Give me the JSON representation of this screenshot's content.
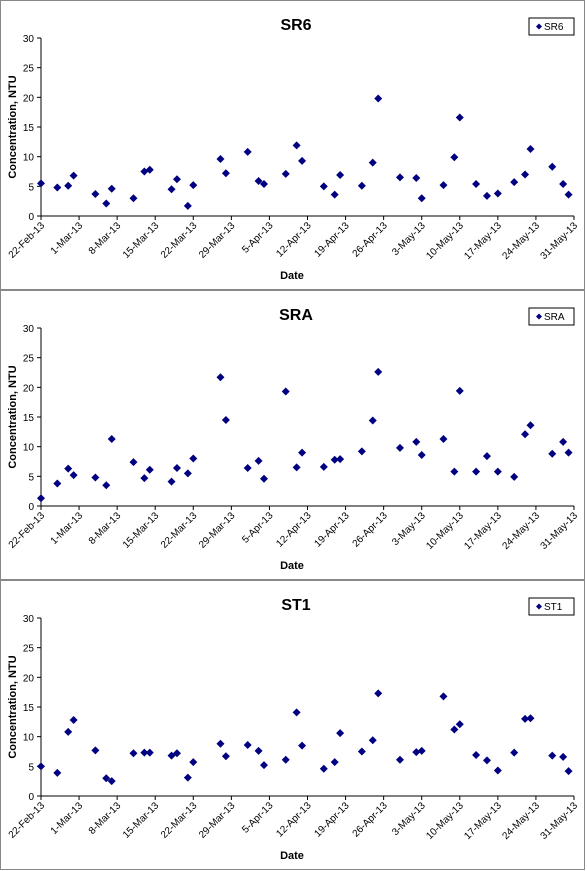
{
  "chart_data": [
    {
      "type": "scatter",
      "title": "SR6",
      "xlabel": "Date",
      "ylabel": "Concentration, NTU",
      "ylim": [
        0,
        30
      ],
      "yticks": [
        0,
        5,
        10,
        15,
        20,
        25,
        30
      ],
      "xlim": [
        "2013-02-22",
        "2013-05-31"
      ],
      "xtick_labels": [
        "22-Feb-13",
        "1-Mar-13",
        "8-Mar-13",
        "15-Mar-13",
        "22-Mar-13",
        "29-Mar-13",
        "5-Apr-13",
        "12-Apr-13",
        "19-Apr-13",
        "26-Apr-13",
        "3-May-13",
        "10-May-13",
        "17-May-13",
        "24-May-13",
        "31-May-13"
      ],
      "grid": false,
      "legend": "top-right",
      "marker_color": "#000080",
      "series": [
        {
          "name": "SR6",
          "x": [
            "2013-02-22",
            "2013-02-25",
            "2013-02-27",
            "2013-02-28",
            "2013-03-04",
            "2013-03-06",
            "2013-03-07",
            "2013-03-11",
            "2013-03-13",
            "2013-03-14",
            "2013-03-18",
            "2013-03-19",
            "2013-03-21",
            "2013-03-22",
            "2013-03-27",
            "2013-03-28",
            "2013-04-01",
            "2013-04-03",
            "2013-04-04",
            "2013-04-08",
            "2013-04-10",
            "2013-04-11",
            "2013-04-15",
            "2013-04-17",
            "2013-04-18",
            "2013-04-22",
            "2013-04-24",
            "2013-04-25",
            "2013-04-29",
            "2013-05-02",
            "2013-05-03",
            "2013-05-07",
            "2013-05-09",
            "2013-05-10",
            "2013-05-13",
            "2013-05-15",
            "2013-05-17",
            "2013-05-20",
            "2013-05-22",
            "2013-05-23",
            "2013-05-27",
            "2013-05-29",
            "2013-05-30"
          ],
          "y": [
            5.5,
            4.8,
            5.1,
            6.8,
            3.7,
            2.1,
            4.6,
            3.0,
            7.5,
            7.8,
            4.5,
            6.2,
            1.7,
            5.2,
            9.6,
            7.2,
            10.8,
            5.9,
            5.4,
            7.1,
            11.9,
            9.3,
            5.0,
            3.6,
            6.9,
            5.1,
            9.0,
            19.8,
            6.5,
            6.4,
            3.0,
            5.2,
            9.9,
            16.6,
            5.4,
            3.4,
            3.8,
            5.7,
            7.0,
            11.3,
            8.3,
            5.4,
            3.6
          ]
        }
      ]
    },
    {
      "type": "scatter",
      "title": "SRA",
      "xlabel": "Date",
      "ylabel": "Concentration, NTU",
      "ylim": [
        0,
        30
      ],
      "yticks": [
        0,
        5,
        10,
        15,
        20,
        25,
        30
      ],
      "xlim": [
        "2013-02-22",
        "2013-05-31"
      ],
      "xtick_labels": [
        "22-Feb-13",
        "1-Mar-13",
        "8-Mar-13",
        "15-Mar-13",
        "22-Mar-13",
        "29-Mar-13",
        "5-Apr-13",
        "12-Apr-13",
        "19-Apr-13",
        "26-Apr-13",
        "3-May-13",
        "10-May-13",
        "17-May-13",
        "24-May-13",
        "31-May-13"
      ],
      "grid": false,
      "legend": "top-right",
      "marker_color": "#000080",
      "series": [
        {
          "name": "SRA",
          "x": [
            "2013-02-22",
            "2013-02-25",
            "2013-02-27",
            "2013-02-28",
            "2013-03-04",
            "2013-03-06",
            "2013-03-07",
            "2013-03-11",
            "2013-03-13",
            "2013-03-14",
            "2013-03-18",
            "2013-03-19",
            "2013-03-21",
            "2013-03-22",
            "2013-03-27",
            "2013-03-28",
            "2013-04-01",
            "2013-04-03",
            "2013-04-04",
            "2013-04-08",
            "2013-04-10",
            "2013-04-11",
            "2013-04-15",
            "2013-04-17",
            "2013-04-18",
            "2013-04-22",
            "2013-04-24",
            "2013-04-25",
            "2013-04-29",
            "2013-05-02",
            "2013-05-03",
            "2013-05-07",
            "2013-05-09",
            "2013-05-10",
            "2013-05-13",
            "2013-05-15",
            "2013-05-17",
            "2013-05-20",
            "2013-05-22",
            "2013-05-23",
            "2013-05-27",
            "2013-05-29",
            "2013-05-30"
          ],
          "y": [
            1.3,
            3.8,
            6.3,
            5.2,
            4.8,
            3.5,
            11.3,
            7.4,
            4.7,
            6.1,
            4.1,
            6.4,
            5.5,
            8.0,
            21.7,
            14.5,
            6.4,
            7.6,
            4.6,
            19.3,
            6.5,
            9.0,
            6.6,
            7.8,
            7.9,
            9.2,
            14.4,
            22.6,
            9.8,
            10.8,
            8.6,
            11.3,
            5.8,
            19.4,
            5.8,
            8.4,
            5.8,
            4.9,
            12.1,
            13.6,
            8.8,
            10.8,
            9.0
          ]
        }
      ]
    },
    {
      "type": "scatter",
      "title": "ST1",
      "xlabel": "Date",
      "ylabel": "Concentration, NTU",
      "ylim": [
        0,
        30
      ],
      "yticks": [
        0,
        5,
        10,
        15,
        20,
        25,
        30
      ],
      "xlim": [
        "2013-02-22",
        "2013-05-31"
      ],
      "xtick_labels": [
        "22-Feb-13",
        "1-Mar-13",
        "8-Mar-13",
        "15-Mar-13",
        "22-Mar-13",
        "29-Mar-13",
        "5-Apr-13",
        "12-Apr-13",
        "19-Apr-13",
        "26-Apr-13",
        "3-May-13",
        "10-May-13",
        "17-May-13",
        "24-May-13",
        "31-May-13"
      ],
      "grid": false,
      "legend": "top-right",
      "marker_color": "#000080",
      "series": [
        {
          "name": "ST1",
          "x": [
            "2013-02-22",
            "2013-02-25",
            "2013-02-27",
            "2013-02-28",
            "2013-03-04",
            "2013-03-06",
            "2013-03-07",
            "2013-03-11",
            "2013-03-13",
            "2013-03-14",
            "2013-03-18",
            "2013-03-19",
            "2013-03-21",
            "2013-03-22",
            "2013-03-27",
            "2013-03-28",
            "2013-04-01",
            "2013-04-03",
            "2013-04-04",
            "2013-04-08",
            "2013-04-10",
            "2013-04-11",
            "2013-04-15",
            "2013-04-17",
            "2013-04-18",
            "2013-04-22",
            "2013-04-24",
            "2013-04-25",
            "2013-04-29",
            "2013-05-02",
            "2013-05-03",
            "2013-05-07",
            "2013-05-09",
            "2013-05-10",
            "2013-05-13",
            "2013-05-15",
            "2013-05-17",
            "2013-05-20",
            "2013-05-22",
            "2013-05-23",
            "2013-05-27",
            "2013-05-29",
            "2013-05-30"
          ],
          "y": [
            5.0,
            3.9,
            10.8,
            12.8,
            7.7,
            3.0,
            2.5,
            7.2,
            7.3,
            7.3,
            6.8,
            7.2,
            3.1,
            5.7,
            8.8,
            6.7,
            8.6,
            7.6,
            5.2,
            6.1,
            14.1,
            8.5,
            4.6,
            5.7,
            10.6,
            7.5,
            9.4,
            17.3,
            6.1,
            7.4,
            7.6,
            16.8,
            11.2,
            12.1,
            6.9,
            6.0,
            4.3,
            7.3,
            13.0,
            13.1,
            6.8,
            6.6,
            4.2
          ]
        }
      ]
    }
  ]
}
